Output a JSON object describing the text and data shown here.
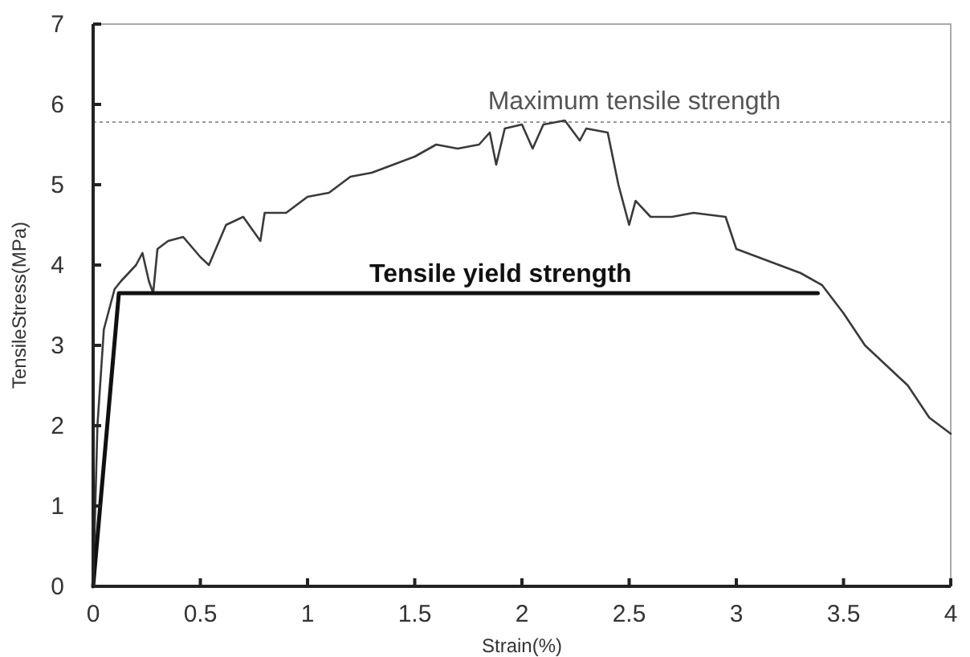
{
  "chart_data": {
    "type": "line",
    "xlabel": "Strain(%)",
    "ylabel": "TensileStress(MPa)",
    "xlim": [
      0,
      4
    ],
    "ylim": [
      0,
      7
    ],
    "xticks": [
      0,
      0.5,
      1,
      1.5,
      2,
      2.5,
      3,
      3.5,
      4
    ],
    "yticks": [
      0,
      1,
      2,
      3,
      4,
      5,
      6,
      7
    ],
    "grid": false,
    "marker": "none",
    "line_style": "solid",
    "series": [
      {
        "color": "#3a3a3a",
        "x": [
          0,
          0.01,
          0.02,
          0.05,
          0.1,
          0.13,
          0.2,
          0.23,
          0.26,
          0.28,
          0.3,
          0.35,
          0.42,
          0.5,
          0.54,
          0.62,
          0.7,
          0.78,
          0.8,
          0.9,
          1.0,
          1.1,
          1.2,
          1.3,
          1.4,
          1.5,
          1.6,
          1.7,
          1.8,
          1.85,
          1.88,
          1.92,
          2.0,
          2.05,
          2.1,
          2.2,
          2.27,
          2.3,
          2.4,
          2.45,
          2.5,
          2.53,
          2.6,
          2.7,
          2.8,
          2.95,
          3.0,
          3.1,
          3.2,
          3.3,
          3.4,
          3.5,
          3.6,
          3.7,
          3.8,
          3.9,
          4.0
        ],
        "values": [
          0,
          1,
          2,
          3.2,
          3.7,
          3.8,
          4.0,
          4.15,
          3.8,
          3.65,
          4.2,
          4.3,
          4.35,
          4.1,
          4.0,
          4.5,
          4.6,
          4.3,
          4.65,
          4.65,
          4.85,
          4.9,
          5.1,
          5.15,
          5.25,
          5.35,
          5.5,
          5.45,
          5.5,
          5.65,
          5.25,
          5.7,
          5.75,
          5.45,
          5.75,
          5.8,
          5.55,
          5.7,
          5.65,
          5.0,
          4.5,
          4.8,
          4.6,
          4.6,
          4.65,
          4.6,
          4.2,
          4.1,
          4.0,
          3.9,
          3.75,
          3.4,
          3.0,
          2.75,
          2.5,
          2.1,
          1.9
        ]
      },
      {
        "color": "#111111",
        "x": [
          0,
          0.12,
          3.38
        ],
        "values": [
          0,
          3.65,
          3.65
        ]
      }
    ],
    "ref_lines": [
      {
        "axis": "y",
        "value": 5.78,
        "label": "Maximum tensile strength",
        "color": "#999999",
        "line_style": "dotted"
      }
    ],
    "annotations": [
      {
        "text": "Tensile yield strength",
        "x": 1.9,
        "y": 3.65
      }
    ]
  }
}
